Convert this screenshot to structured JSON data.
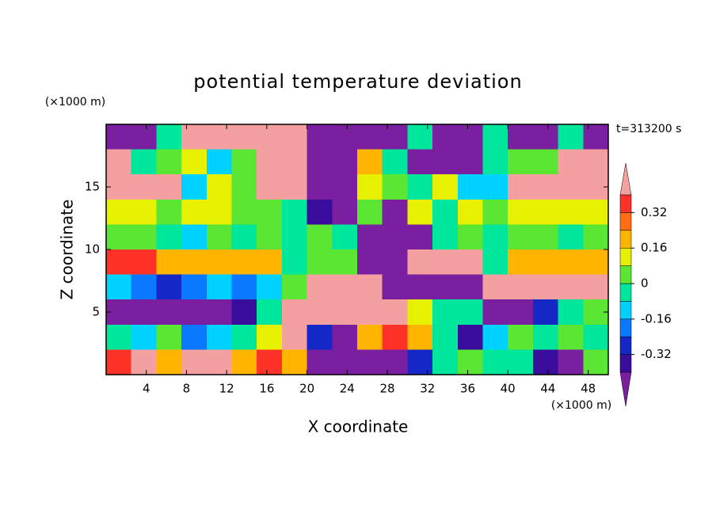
{
  "chart_data": {
    "type": "contour",
    "title": "potential temperature deviation",
    "x_label": "X coordinate",
    "y_label": "Z coordinate",
    "x_unit": "(×1000 m)",
    "y_unit": "(×1000 m)",
    "annotation": "t=313200 s",
    "xlim": [
      0,
      50
    ],
    "ylim": [
      0,
      20
    ],
    "xticks": [
      4,
      8,
      12,
      16,
      20,
      24,
      28,
      32,
      36,
      40,
      44,
      48
    ],
    "yticks": [
      5,
      10,
      15
    ],
    "x": [
      1.25,
      3.75,
      6.25,
      8.75,
      11.25,
      13.75,
      16.25,
      18.75,
      21.25,
      23.75,
      26.25,
      28.75,
      31.25,
      33.75,
      36.25,
      38.75,
      41.25,
      43.75,
      46.25,
      48.75
    ],
    "y": [
      19,
      17,
      15,
      13,
      11,
      9,
      7,
      5,
      3,
      1
    ],
    "z": [
      [
        -0.45,
        -0.45,
        -0.04,
        0.45,
        0.45,
        0.45,
        0.45,
        0.45,
        -0.45,
        -0.45,
        -0.45,
        -0.45,
        -0.04,
        -0.45,
        -0.45,
        -0.04,
        -0.45,
        -0.45,
        -0.04,
        -0.45
      ],
      [
        0.45,
        -0.04,
        0.04,
        0.12,
        -0.12,
        0.04,
        0.45,
        0.45,
        -0.45,
        -0.45,
        0.2,
        -0.04,
        -0.45,
        -0.45,
        -0.45,
        -0.04,
        0.04,
        0.04,
        0.45,
        0.45
      ],
      [
        0.45,
        0.45,
        0.45,
        -0.12,
        0.12,
        0.04,
        0.45,
        0.45,
        -0.45,
        -0.45,
        0.12,
        0.04,
        -0.04,
        0.12,
        -0.12,
        -0.12,
        0.45,
        0.45,
        0.45,
        0.45
      ],
      [
        0.12,
        0.12,
        0.04,
        0.12,
        0.12,
        0.04,
        0.04,
        -0.04,
        -0.36,
        -0.45,
        0.04,
        -0.45,
        0.12,
        -0.04,
        0.12,
        0.04,
        0.12,
        0.12,
        0.12,
        0.12
      ],
      [
        0.04,
        0.04,
        -0.04,
        -0.12,
        0.04,
        -0.04,
        0.04,
        -0.04,
        0.04,
        -0.04,
        -0.45,
        -0.45,
        -0.45,
        -0.04,
        0.04,
        -0.04,
        0.04,
        0.04,
        -0.04,
        0.04
      ],
      [
        0.36,
        0.36,
        0.2,
        0.2,
        0.2,
        0.2,
        0.2,
        -0.04,
        0.04,
        0.04,
        -0.45,
        -0.45,
        0.45,
        0.45,
        0.45,
        -0.04,
        0.2,
        0.2,
        0.2,
        0.2
      ],
      [
        -0.12,
        -0.2,
        -0.28,
        -0.2,
        -0.12,
        -0.2,
        -0.12,
        0.04,
        0.45,
        0.45,
        0.45,
        -0.45,
        -0.45,
        -0.45,
        -0.45,
        0.45,
        0.45,
        0.45,
        0.45,
        0.45
      ],
      [
        -0.45,
        -0.45,
        -0.45,
        -0.45,
        -0.45,
        -0.36,
        -0.04,
        0.45,
        0.45,
        0.45,
        0.45,
        0.45,
        0.12,
        -0.04,
        -0.04,
        -0.45,
        -0.45,
        -0.28,
        -0.04,
        0.04
      ],
      [
        -0.04,
        -0.12,
        0.04,
        -0.2,
        -0.12,
        -0.04,
        0.12,
        0.45,
        -0.28,
        -0.45,
        0.2,
        0.36,
        0.2,
        -0.04,
        -0.36,
        -0.12,
        0.04,
        -0.04,
        0.04,
        -0.04
      ],
      [
        0.36,
        0.45,
        0.2,
        0.45,
        0.45,
        0.2,
        0.36,
        0.2,
        -0.45,
        -0.45,
        -0.45,
        -0.45,
        -0.28,
        -0.04,
        0.04,
        -0.04,
        -0.04,
        -0.36,
        -0.45,
        0.04
      ]
    ],
    "colorbar": {
      "levels": [
        -0.4,
        -0.32,
        -0.24,
        -0.16,
        -0.08,
        0,
        0.08,
        0.16,
        0.24,
        0.32,
        0.4
      ],
      "colors": [
        "#7a1fa0",
        "#3a0c9c",
        "#1428c8",
        "#0a78ff",
        "#00d2ff",
        "#00e69a",
        "#5ae632",
        "#e6f000",
        "#ffb400",
        "#ff6e14",
        "#ff3228",
        "#f4a0a0"
      ],
      "ticks": [
        0.32,
        0.16,
        0,
        -0.16,
        -0.32
      ]
    }
  }
}
